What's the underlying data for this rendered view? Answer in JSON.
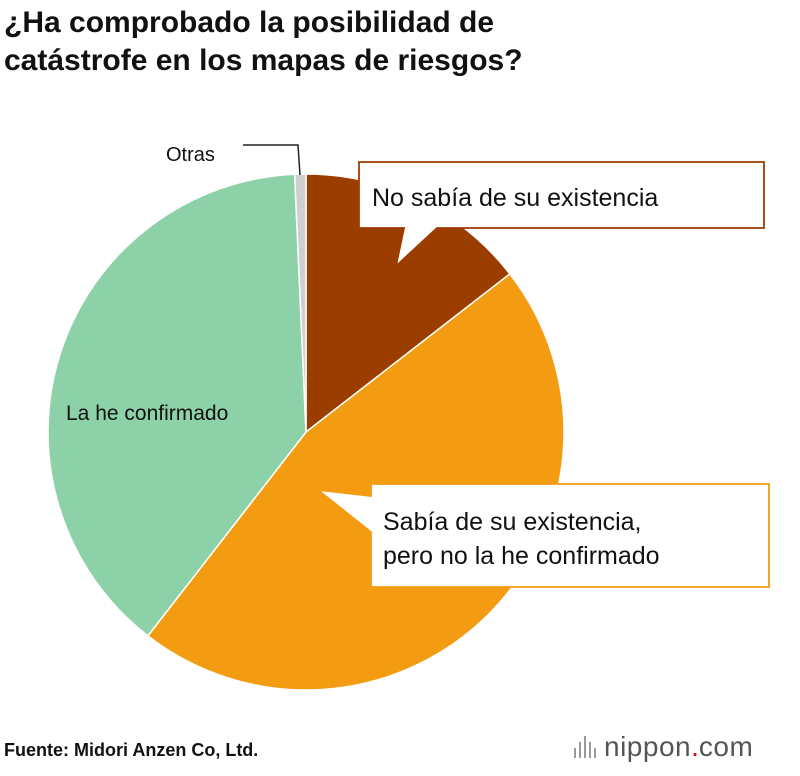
{
  "title_lines": [
    "¿Ha comprobado la posibilidad de",
    "catástrofe en los mapas de riesgos?"
  ],
  "source": "Fuente: Midori Anzen Co, Ltd.",
  "brand": {
    "name": "nippon",
    "dot": ".",
    "tld": "com"
  },
  "chart_data": {
    "type": "pie",
    "start": "12 o'clock",
    "direction": "clockwise",
    "slices": [
      {
        "label": "No sabía de su existencia",
        "value": 14.5,
        "color": "#9c3d00"
      },
      {
        "label": "Sabía de su existencia, pero no la he confirmado",
        "value": 46,
        "color": "#f39c12"
      },
      {
        "label": "La he confirmado",
        "value": 38.8,
        "color": "#8dd1a9"
      },
      {
        "label": "Otras",
        "value": 0.7,
        "color": "#cfcfcf"
      }
    ],
    "labels": {
      "no_sabia": "No sabía de su existencia",
      "sabia_lines": [
        "Sabía de su existencia,",
        "pero no la he confirmado"
      ],
      "confirmado": "La he confirmado",
      "otras": "Otras"
    },
    "callout_border_colors": {
      "no_sabia": "#9c3d00",
      "sabia": "#f39c12"
    },
    "legend": "none (direct labels)"
  }
}
